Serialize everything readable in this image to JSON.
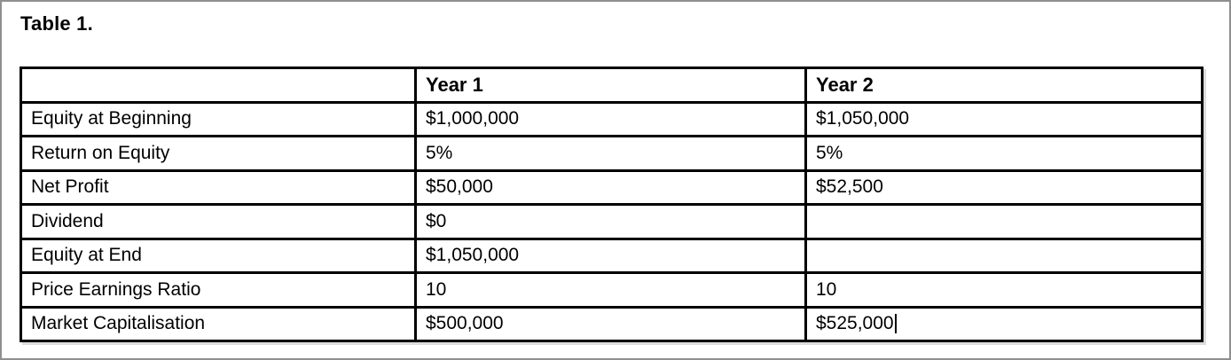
{
  "page": {
    "title": "Table 1."
  },
  "table": {
    "columns": [
      "",
      "Year 1",
      "Year 2"
    ],
    "rows": [
      {
        "label": "Equity at Beginning",
        "year1": "$1,000,000",
        "year2": "$1,050,000"
      },
      {
        "label": "Return on Equity",
        "year1": "5%",
        "year2": "5%"
      },
      {
        "label": "Net Profit",
        "year1": "$50,000",
        "year2": "$52,500"
      },
      {
        "label": "Dividend",
        "year1": "$0",
        "year2": ""
      },
      {
        "label": "Equity at End",
        "year1": "$1,050,000",
        "year2": ""
      },
      {
        "label": "Price Earnings Ratio",
        "year1": "10",
        "year2": "10"
      },
      {
        "label": "Market Capitalisation",
        "year1": "$500,000",
        "year2": "$525,000"
      }
    ]
  },
  "editor": {
    "text_cursor_cell": "Market Capitalisation / Year 2",
    "text_cursor_after": "$525,000"
  },
  "colors": {
    "table_border": "#000000",
    "frame_border": "#8f8f8f",
    "text": "#000000",
    "background": "#ffffff"
  }
}
